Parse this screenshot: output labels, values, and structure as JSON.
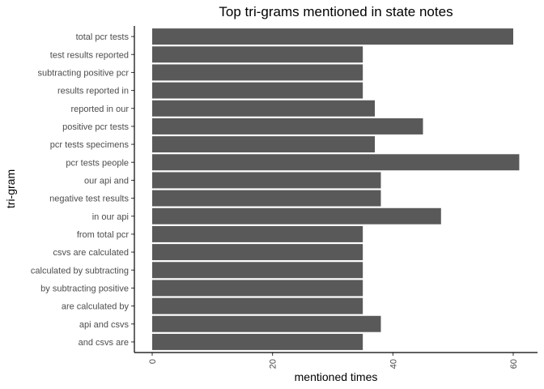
{
  "chart_data": {
    "type": "bar",
    "orientation": "horizontal",
    "title": "Top tri-grams mentioned in state notes",
    "xlabel": "mentioned times",
    "ylabel": "tri-gram",
    "xlim": [
      0,
      62
    ],
    "xticks": [
      0,
      20,
      40,
      60
    ],
    "grid": false,
    "bar_color": "#595959",
    "categories": [
      "total pcr tests",
      "test results reported",
      "subtracting positive pcr",
      "results reported in",
      "reported in our",
      "positive pcr tests",
      "pcr tests specimens",
      "pcr tests people",
      "our api and",
      "negative test results",
      "in our api",
      "from total pcr",
      "csvs are calculated",
      "calculated by subtracting",
      "by subtracting positive",
      "are calculated by",
      "api and csvs",
      "and csvs are"
    ],
    "values": [
      60,
      35,
      35,
      35,
      37,
      45,
      37,
      61,
      38,
      38,
      48,
      35,
      35,
      35,
      35,
      35,
      38,
      35
    ]
  }
}
